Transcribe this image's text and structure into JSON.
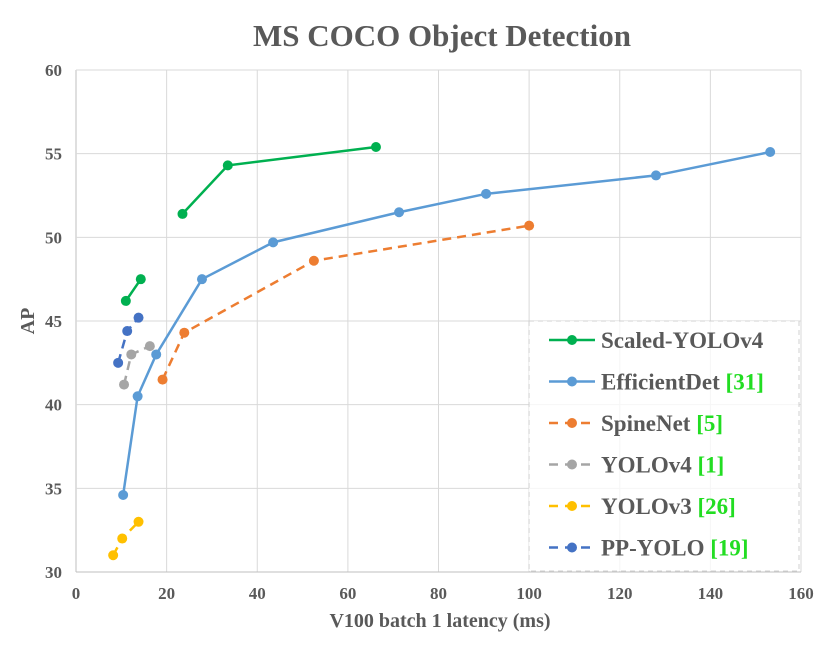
{
  "chart_data": {
    "type": "line",
    "title": "MS COCO Object Detection",
    "xlabel": "V100 batch 1 latency (ms)",
    "ylabel": "AP",
    "xlim": [
      0,
      160
    ],
    "ylim": [
      30,
      60
    ],
    "xticks": [
      0,
      20,
      40,
      60,
      80,
      100,
      120,
      140,
      160
    ],
    "yticks": [
      30,
      35,
      40,
      45,
      50,
      55,
      60
    ],
    "grid": true,
    "legend_position": "bottom-right",
    "series": [
      {
        "name": "Scaled-YOLOv4",
        "ref": "",
        "color": "#00b050",
        "dash": false,
        "segments": [
          [
            [
              23.5,
              51.4
            ],
            [
              33.5,
              54.3
            ],
            [
              66.2,
              55.4
            ]
          ],
          [
            [
              11.0,
              46.2
            ],
            [
              14.3,
              47.5
            ]
          ]
        ]
      },
      {
        "name": "EfficientDet",
        "ref": "[31]",
        "color": "#5b9bd5",
        "dash": false,
        "segments": [
          [
            [
              10.4,
              34.6
            ],
            [
              13.6,
              40.5
            ],
            [
              17.7,
              43.0
            ],
            [
              27.8,
              47.5
            ],
            [
              43.5,
              49.7
            ],
            [
              71.3,
              51.5
            ],
            [
              90.5,
              52.6
            ],
            [
              128.0,
              53.7
            ],
            [
              153.2,
              55.1
            ]
          ]
        ]
      },
      {
        "name": "SpineNet",
        "ref": "[5]",
        "color": "#ed7d31",
        "dash": true,
        "segments": [
          [
            [
              19.1,
              41.5
            ],
            [
              23.9,
              44.3
            ],
            [
              52.5,
              48.6
            ],
            [
              100.0,
              50.7
            ]
          ]
        ]
      },
      {
        "name": "YOLOv4",
        "ref": "[1]",
        "color": "#a5a5a5",
        "dash": true,
        "segments": [
          [
            [
              10.6,
              41.2
            ],
            [
              12.2,
              43.0
            ],
            [
              16.3,
              43.5
            ]
          ]
        ]
      },
      {
        "name": "YOLOv3",
        "ref": "[26]",
        "color": "#ffc000",
        "dash": true,
        "segments": [
          [
            [
              8.2,
              31.0
            ],
            [
              10.2,
              32.0
            ],
            [
              13.8,
              33.0
            ]
          ]
        ]
      },
      {
        "name": "PP-YOLO",
        "ref": "[19]",
        "color": "#4472c4",
        "dash": true,
        "segments": [
          [
            [
              9.3,
              42.5
            ],
            [
              11.3,
              44.4
            ],
            [
              13.8,
              45.2
            ]
          ]
        ]
      }
    ]
  }
}
